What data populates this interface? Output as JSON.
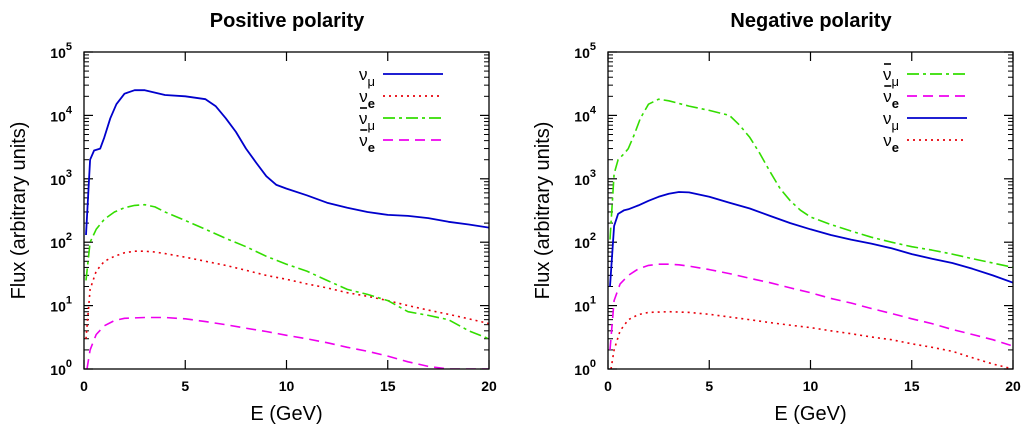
{
  "colors": {
    "nu_mu": "#0000cc",
    "nu_e": "#e8000b",
    "nubar_mu": "#33dd00",
    "nubar_e": "#ee00ee"
  },
  "chart_data": [
    {
      "type": "line",
      "title": "Positive polarity",
      "xlabel": "E (GeV)",
      "ylabel": "Flux (arbitrary units)",
      "xlim": [
        0,
        20
      ],
      "ylim": [
        1,
        100000
      ],
      "yscale": "log",
      "xticks": [
        "0",
        "5",
        "10",
        "15",
        "20"
      ],
      "yticks": [
        {
          "base": "10",
          "exp": "0"
        },
        {
          "base": "10",
          "exp": "1"
        },
        {
          "base": "10",
          "exp": "2"
        },
        {
          "base": "10",
          "exp": "3"
        },
        {
          "base": "10",
          "exp": "4"
        },
        {
          "base": "10",
          "exp": "5"
        }
      ],
      "legend_position": "top-right",
      "series": [
        {
          "key": "nu_mu",
          "name": "ν",
          "sub": "μ",
          "bar": false,
          "style": "solid",
          "x": [
            0.1,
            0.3,
            0.5,
            0.8,
            1.0,
            1.3,
            1.6,
            2.0,
            2.5,
            3.0,
            4.0,
            5.0,
            6.0,
            6.5,
            7.0,
            7.5,
            8.0,
            8.5,
            9.0,
            9.5,
            10.0,
            11.0,
            12.0,
            13.0,
            14.0,
            15.0,
            16.0,
            17.0,
            18.0,
            19.0,
            20.0
          ],
          "y": [
            130,
            2000,
            2800,
            3000,
            4500,
            9000,
            15000,
            22000,
            25000,
            25000,
            21000,
            20000,
            18000,
            14000,
            9000,
            5500,
            3000,
            1800,
            1100,
            800,
            700,
            550,
            420,
            350,
            300,
            270,
            260,
            240,
            210,
            190,
            170
          ]
        },
        {
          "key": "nu_e",
          "name": "ν",
          "sub": "e",
          "bar": false,
          "style": "dotted",
          "x": [
            0.1,
            0.3,
            0.6,
            1.0,
            1.5,
            2.0,
            2.5,
            3.0,
            3.5,
            4.0,
            5.0,
            6.0,
            7.0,
            8.0,
            9.0,
            10.0,
            11.0,
            12.0,
            13.0,
            14.0,
            15.0,
            16.0,
            17.0,
            18.0,
            19.0,
            20.0
          ],
          "y": [
            3,
            18,
            35,
            50,
            60,
            68,
            72,
            72,
            70,
            66,
            58,
            50,
            43,
            36,
            30,
            26,
            22,
            19,
            16,
            14,
            12,
            10,
            8.5,
            7.3,
            6.2,
            5.2
          ]
        },
        {
          "key": "nubar_mu",
          "name": "ν",
          "sub": "μ",
          "bar": true,
          "style": "dashdot",
          "x": [
            0.1,
            0.3,
            0.6,
            1.0,
            1.5,
            2.0,
            2.5,
            3.0,
            3.5,
            4.0,
            5.0,
            6.0,
            7.0,
            8.0,
            9.0,
            10.0,
            11.0,
            12.0,
            13.0,
            14.0,
            15.0,
            16.0,
            17.0,
            18.0,
            19.0,
            20.0
          ],
          "y": [
            25,
            100,
            160,
            230,
            300,
            350,
            380,
            390,
            360,
            300,
            220,
            160,
            115,
            85,
            60,
            45,
            35,
            25,
            18,
            15,
            12,
            8,
            7,
            6,
            4,
            3
          ]
        },
        {
          "key": "nubar_e",
          "name": "ν",
          "sub": "e",
          "bar": true,
          "style": "dashed",
          "x": [
            0.15,
            0.3,
            0.6,
            1.0,
            1.5,
            2.0,
            3.0,
            4.0,
            5.0,
            6.0,
            7.0,
            8.0,
            9.0,
            10.0,
            11.0,
            12.0,
            13.0,
            14.0,
            15.0,
            16.0,
            17.0,
            18.0,
            19.0,
            20.0
          ],
          "y": [
            1,
            2,
            3.5,
            4.8,
            5.8,
            6.3,
            6.5,
            6.5,
            6.2,
            5.6,
            5.0,
            4.4,
            3.9,
            3.4,
            3.0,
            2.6,
            2.2,
            1.9,
            1.6,
            1.3,
            1.1,
            1.0,
            1.0,
            1.0
          ]
        }
      ]
    },
    {
      "type": "line",
      "title": "Negative polarity",
      "xlabel": "E (GeV)",
      "ylabel": "Flux (arbitrary units)",
      "xlim": [
        0,
        20
      ],
      "ylim": [
        1,
        100000
      ],
      "yscale": "log",
      "xticks": [
        "0",
        "5",
        "10",
        "15",
        "20"
      ],
      "yticks": [
        {
          "base": "10",
          "exp": "0"
        },
        {
          "base": "10",
          "exp": "1"
        },
        {
          "base": "10",
          "exp": "2"
        },
        {
          "base": "10",
          "exp": "3"
        },
        {
          "base": "10",
          "exp": "4"
        },
        {
          "base": "10",
          "exp": "5"
        }
      ],
      "legend_position": "top-right",
      "series": [
        {
          "key": "nubar_mu",
          "name": "ν",
          "sub": "μ",
          "bar": true,
          "style": "dashdot",
          "x": [
            0.1,
            0.3,
            0.5,
            0.8,
            1.0,
            1.3,
            1.6,
            2.0,
            2.5,
            3.0,
            4.0,
            5.0,
            6.0,
            6.5,
            7.0,
            7.5,
            8.0,
            8.5,
            9.0,
            9.5,
            10.0,
            11.0,
            12.0,
            13.0,
            14.0,
            15.0,
            16.0,
            17.0,
            18.0,
            19.0,
            20.0
          ],
          "y": [
            110,
            1200,
            2000,
            2500,
            3000,
            5000,
            9000,
            15000,
            18000,
            17000,
            14000,
            12000,
            10000,
            7000,
            4500,
            2500,
            1300,
            700,
            450,
            320,
            250,
            190,
            150,
            120,
            100,
            85,
            75,
            65,
            55,
            47,
            40
          ]
        },
        {
          "key": "nubar_e",
          "name": "ν",
          "sub": "e",
          "bar": true,
          "style": "dashed",
          "x": [
            0.1,
            0.3,
            0.6,
            1.0,
            1.5,
            2.0,
            2.5,
            3.0,
            3.5,
            4.0,
            5.0,
            6.0,
            7.0,
            8.0,
            9.0,
            10.0,
            11.0,
            12.0,
            13.0,
            14.0,
            15.0,
            16.0,
            17.0,
            18.0,
            19.0,
            20.0
          ],
          "y": [
            2,
            12,
            22,
            30,
            38,
            43,
            45,
            45,
            44,
            42,
            37,
            32,
            27,
            23,
            19,
            16,
            13,
            11,
            9,
            7.5,
            6.2,
            5.2,
            4.2,
            3.5,
            2.9,
            2.3
          ]
        },
        {
          "key": "nu_mu",
          "name": "ν",
          "sub": "μ",
          "bar": false,
          "style": "solid",
          "x": [
            0.1,
            0.3,
            0.5,
            0.8,
            1.0,
            1.5,
            2.0,
            2.5,
            3.0,
            3.5,
            4.0,
            5.0,
            6.0,
            7.0,
            8.0,
            9.0,
            10.0,
            11.0,
            12.0,
            13.0,
            14.0,
            15.0,
            16.0,
            17.0,
            18.0,
            19.0,
            20.0
          ],
          "y": [
            20,
            180,
            280,
            320,
            330,
            380,
            450,
            520,
            580,
            620,
            610,
            520,
            420,
            340,
            260,
            200,
            160,
            130,
            110,
            95,
            80,
            65,
            55,
            47,
            38,
            30,
            23
          ]
        },
        {
          "key": "nu_e",
          "name": "ν",
          "sub": "e",
          "bar": false,
          "style": "dotted",
          "x": [
            0.15,
            0.3,
            0.6,
            1.0,
            1.5,
            2.0,
            3.0,
            4.0,
            5.0,
            6.0,
            7.0,
            8.0,
            9.0,
            10.0,
            11.0,
            12.0,
            13.0,
            14.0,
            15.0,
            16.0,
            17.0,
            18.0,
            19.0,
            20.0
          ],
          "y": [
            1,
            2,
            4,
            6,
            7.2,
            7.8,
            8.0,
            7.8,
            7.3,
            6.6,
            6.0,
            5.4,
            4.9,
            4.5,
            4.0,
            3.6,
            3.2,
            2.9,
            2.5,
            2.2,
            1.9,
            1.5,
            1.2,
            1.0
          ]
        }
      ]
    }
  ]
}
